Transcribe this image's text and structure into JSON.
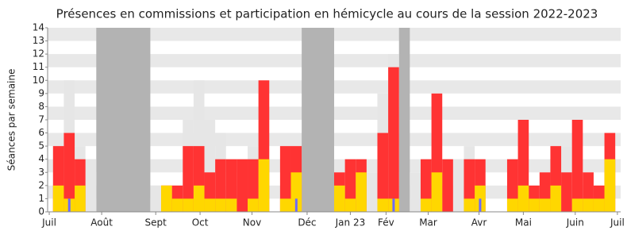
{
  "chart_data": {
    "type": "bar",
    "title": "Présences en commissions et participation en hémicycle au cours de la session 2022-2023",
    "y_label": "Séances par semaine",
    "x": [
      1,
      2,
      3,
      4,
      5,
      6,
      7,
      8,
      9,
      10,
      11,
      12,
      13,
      14,
      15,
      16,
      17,
      18,
      19,
      20,
      21,
      22,
      23,
      24,
      25,
      26,
      27,
      28,
      29,
      30,
      31,
      32,
      33,
      34,
      35,
      36,
      37,
      38,
      39,
      40,
      41,
      42,
      43,
      44,
      45,
      46,
      47,
      48,
      49,
      50,
      51,
      52
    ],
    "xlim": [
      0,
      53
    ],
    "xticks": [
      {
        "value": 0.15,
        "label": "Juil"
      },
      {
        "value": 5,
        "label": "Août"
      },
      {
        "value": 10,
        "label": "Sept"
      },
      {
        "value": 14.1,
        "label": "Oct"
      },
      {
        "value": 18.9,
        "label": "Nov"
      },
      {
        "value": 24,
        "label": "Déc"
      },
      {
        "value": 28,
        "label": "Jan 23"
      },
      {
        "value": 31.3,
        "label": "Fév"
      },
      {
        "value": 35.2,
        "label": "Mar"
      },
      {
        "value": 39.9,
        "label": "Avr"
      },
      {
        "value": 44,
        "label": "Mai"
      },
      {
        "value": 48.8,
        "label": "Juin"
      },
      {
        "value": 52.7,
        "label": "Juil"
      }
    ],
    "ylim": [
      0,
      14
    ],
    "yticks": [
      0,
      1,
      2,
      3,
      4,
      5,
      6,
      7,
      8,
      9,
      10,
      11,
      12,
      13,
      14
    ],
    "grid": true,
    "shaded_periods": [
      [
        4.5,
        9.5
      ],
      [
        23.5,
        26.5
      ],
      [
        32.5,
        33.5
      ]
    ],
    "shaded_color": "#b3b3b3",
    "series": [
      {
        "color": "#e6e6e6",
        "width": 1,
        "values": [
          5,
          10,
          5,
          4,
          null,
          null,
          null,
          null,
          null,
          2,
          null,
          null,
          7,
          10,
          7,
          6,
          null,
          null,
          5,
          null,
          null,
          null,
          null,
          null,
          null,
          null,
          null,
          null,
          null,
          3,
          9,
          12,
          null,
          3,
          null,
          null,
          null,
          4,
          5,
          null,
          null,
          null,
          null,
          null,
          null,
          null,
          null,
          5,
          null,
          null,
          null,
          null
        ]
      },
      {
        "color": "#ff3333",
        "width": 1,
        "values": [
          5,
          6,
          4,
          null,
          null,
          null,
          null,
          null,
          null,
          null,
          2,
          2,
          5,
          5,
          3,
          4,
          4,
          4,
          4,
          10,
          null,
          5,
          5,
          null,
          null,
          null,
          3,
          4,
          4,
          null,
          6,
          11,
          null,
          null,
          4,
          9,
          4,
          null,
          4,
          4,
          null,
          null,
          4,
          7,
          2,
          3,
          5,
          3,
          7,
          3,
          2,
          6
        ]
      },
      {
        "color": "#ffd700",
        "width": 1,
        "values": [
          2,
          1,
          2,
          null,
          null,
          null,
          null,
          null,
          null,
          null,
          2,
          1,
          1,
          2,
          1,
          1,
          1,
          null,
          1,
          4,
          null,
          1,
          3,
          null,
          null,
          null,
          2,
          1,
          3,
          null,
          1,
          1,
          null,
          null,
          1,
          3,
          null,
          null,
          1,
          2,
          null,
          null,
          1,
          2,
          1,
          1,
          2,
          null,
          1,
          1,
          1,
          4
        ]
      },
      {
        "color": "#6b6bff",
        "width": 0.22,
        "values": [
          null,
          1,
          null,
          null,
          null,
          null,
          null,
          null,
          null,
          null,
          null,
          null,
          null,
          null,
          null,
          null,
          null,
          null,
          null,
          null,
          null,
          null,
          1,
          null,
          null,
          null,
          null,
          null,
          null,
          null,
          null,
          1,
          null,
          null,
          null,
          null,
          null,
          null,
          null,
          1,
          null,
          null,
          null,
          null,
          null,
          null,
          null,
          null,
          null,
          null,
          null,
          null
        ]
      }
    ]
  }
}
